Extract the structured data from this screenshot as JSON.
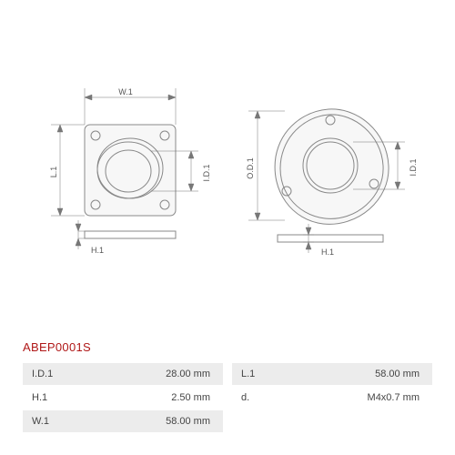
{
  "part_number": "ABEP0001S",
  "left_drawing": {
    "labels": {
      "w1": "W.1",
      "l1": "L.1",
      "id1": "I.D.1",
      "h1": "H.1"
    }
  },
  "right_drawing": {
    "labels": {
      "od1": "O.D.1",
      "id1": "I.D.1",
      "h1": "H.1"
    }
  },
  "specs_left": [
    {
      "label": "I.D.1",
      "value": "28.00 mm",
      "shaded": true
    },
    {
      "label": "H.1",
      "value": "2.50 mm",
      "shaded": false
    },
    {
      "label": "W.1",
      "value": "58.00 mm",
      "shaded": true
    }
  ],
  "specs_right": [
    {
      "label": "L.1",
      "value": "58.00 mm",
      "shaded": true
    },
    {
      "label": "d.",
      "value": "M4x0.7 mm",
      "shaded": false
    }
  ],
  "colors": {
    "part_number": "#b01818",
    "shade_bg": "#ececec",
    "stroke": "#888888",
    "dim": "#777777",
    "text": "#555555"
  }
}
